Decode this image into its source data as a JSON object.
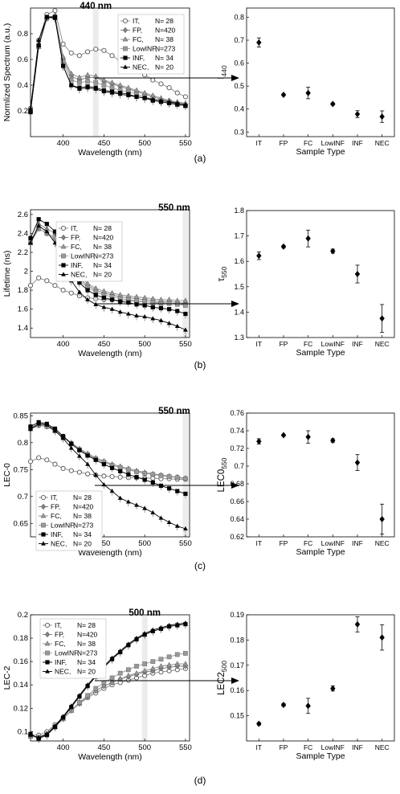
{
  "panels": [
    {
      "panel_label": "(a)",
      "left": {
        "type": "line",
        "highlight_label": "440 nm",
        "highlight_x": 440,
        "xlabel": "Wavelength (nm)",
        "ylabel": "Normlized Spectrum (a.u.)",
        "xlim": [
          360,
          555
        ],
        "ylim": [
          0.0,
          1.0
        ],
        "xticks": [
          400,
          450,
          500,
          550
        ],
        "yticks": [
          0.2,
          0.4,
          0.6,
          0.8
        ],
        "x": [
          360,
          370,
          380,
          390,
          400,
          410,
          420,
          430,
          440,
          450,
          460,
          470,
          480,
          490,
          500,
          510,
          520,
          530,
          540,
          550
        ],
        "series": [
          {
            "name": "IT,",
            "n": "N= 28",
            "values": [
              0.22,
              0.75,
              0.95,
              0.98,
              0.72,
              0.65,
              0.63,
              0.66,
              0.68,
              0.67,
              0.63,
              0.59,
              0.56,
              0.52,
              0.48,
              0.44,
              0.41,
              0.38,
              0.34,
              0.31
            ]
          },
          {
            "name": "FP,",
            "n": "N=420",
            "values": [
              0.2,
              0.7,
              0.92,
              0.94,
              0.6,
              0.47,
              0.44,
              0.46,
              0.46,
              0.43,
              0.41,
              0.39,
              0.37,
              0.35,
              0.33,
              0.31,
              0.29,
              0.28,
              0.26,
              0.25
            ]
          },
          {
            "name": "FC,",
            "n": "N= 38",
            "values": [
              0.2,
              0.7,
              0.93,
              0.94,
              0.62,
              0.49,
              0.46,
              0.48,
              0.47,
              0.44,
              0.42,
              0.4,
              0.38,
              0.36,
              0.34,
              0.32,
              0.3,
              0.28,
              0.27,
              0.26
            ]
          },
          {
            "name": "LowINF,",
            "n": "N=273",
            "values": [
              0.2,
              0.7,
              0.92,
              0.93,
              0.58,
              0.44,
              0.42,
              0.43,
              0.42,
              0.4,
              0.38,
              0.36,
              0.35,
              0.33,
              0.31,
              0.29,
              0.28,
              0.27,
              0.25,
              0.24
            ]
          },
          {
            "name": "INF,",
            "n": "N= 34",
            "values": [
              0.19,
              0.71,
              0.93,
              0.93,
              0.55,
              0.4,
              0.38,
              0.39,
              0.38,
              0.36,
              0.35,
              0.34,
              0.33,
              0.31,
              0.3,
              0.28,
              0.27,
              0.26,
              0.25,
              0.24
            ]
          },
          {
            "name": "NEC,",
            "n": "N= 20",
            "values": [
              0.22,
              0.75,
              0.93,
              0.92,
              0.55,
              0.4,
              0.37,
              0.38,
              0.37,
              0.35,
              0.34,
              0.33,
              0.32,
              0.31,
              0.3,
              0.29,
              0.28,
              0.27,
              0.26,
              0.25
            ]
          }
        ]
      },
      "right": {
        "type": "scatter",
        "ylabel_main": "I",
        "ylabel_sub": "440",
        "xlabel": "Sample Type",
        "categories": [
          "IT",
          "FP",
          "FC",
          "LowINF",
          "INF",
          "NEC"
        ],
        "values": [
          0.69,
          0.462,
          0.47,
          0.422,
          0.378,
          0.367
        ],
        "errors": [
          0.02,
          0.004,
          0.025,
          0.005,
          0.015,
          0.025
        ],
        "ylim": [
          0.28,
          0.84
        ],
        "yticks": [
          0.3,
          0.4,
          0.5,
          0.6,
          0.7,
          0.8
        ],
        "yticklabels": [
          "0.3",
          "0.4",
          "0.5",
          "0.6",
          "0.7",
          "0.8"
        ]
      }
    },
    {
      "panel_label": "(b)",
      "left": {
        "type": "line",
        "highlight_label": "550 nm",
        "highlight_x": 550,
        "xlabel": "Wavelength (nm)",
        "ylabel": "Lifetime (ns)",
        "xlim": [
          360,
          555
        ],
        "ylim": [
          1.3,
          2.65
        ],
        "xticks": [
          400,
          450,
          500,
          550
        ],
        "yticks": [
          1.4,
          1.6,
          1.8,
          2,
          2.2,
          2.4,
          2.6
        ],
        "x": [
          360,
          370,
          380,
          390,
          400,
          410,
          420,
          430,
          440,
          450,
          460,
          470,
          480,
          490,
          500,
          510,
          520,
          530,
          540,
          550
        ],
        "series": [
          {
            "name": "IT,",
            "n": "N= 28",
            "values": [
              1.85,
              1.93,
              1.9,
              1.85,
              1.8,
              1.77,
              1.74,
              1.72,
              1.71,
              1.7,
              1.7,
              1.69,
              1.69,
              1.68,
              1.68,
              1.67,
              1.67,
              1.66,
              1.66,
              1.65
            ]
          },
          {
            "name": "FP,",
            "n": "N=420",
            "values": [
              2.3,
              2.45,
              2.4,
              2.35,
              2.15,
              2.0,
              1.92,
              1.85,
              1.8,
              1.77,
              1.75,
              1.73,
              1.72,
              1.71,
              1.7,
              1.69,
              1.68,
              1.68,
              1.67,
              1.66
            ]
          },
          {
            "name": "FC,",
            "n": "N= 38",
            "values": [
              2.3,
              2.5,
              2.45,
              2.4,
              2.2,
              2.05,
              1.95,
              1.87,
              1.82,
              1.79,
              1.77,
              1.75,
              1.74,
              1.73,
              1.72,
              1.71,
              1.7,
              1.7,
              1.69,
              1.69
            ]
          },
          {
            "name": "LowINF,",
            "n": "N=273",
            "values": [
              2.3,
              2.45,
              2.4,
              2.35,
              2.15,
              2.0,
              1.9,
              1.83,
              1.78,
              1.75,
              1.73,
              1.71,
              1.7,
              1.69,
              1.68,
              1.67,
              1.66,
              1.66,
              1.65,
              1.64
            ]
          },
          {
            "name": "INF,",
            "n": "N= 34",
            "values": [
              2.35,
              2.55,
              2.5,
              2.42,
              2.15,
              1.98,
              1.88,
              1.8,
              1.75,
              1.72,
              1.7,
              1.68,
              1.67,
              1.65,
              1.64,
              1.62,
              1.61,
              1.6,
              1.58,
              1.55
            ]
          },
          {
            "name": "NEC,",
            "n": "N= 20",
            "values": [
              2.3,
              2.48,
              2.42,
              2.3,
              2.1,
              1.9,
              1.78,
              1.7,
              1.65,
              1.62,
              1.6,
              1.57,
              1.55,
              1.53,
              1.52,
              1.5,
              1.48,
              1.45,
              1.42,
              1.38
            ]
          }
        ]
      },
      "right": {
        "type": "scatter",
        "ylabel_main": "τ",
        "ylabel_sub": "550",
        "xlabel": "Sample Type",
        "categories": [
          "IT",
          "FP",
          "FC",
          "LowINF",
          "INF",
          "NEC"
        ],
        "values": [
          1.622,
          1.658,
          1.69,
          1.64,
          1.55,
          1.375
        ],
        "errors": [
          0.015,
          0.005,
          0.033,
          0.008,
          0.035,
          0.055
        ],
        "ylim": [
          1.3,
          1.8
        ],
        "yticks": [
          1.3,
          1.4,
          1.5,
          1.6,
          1.7,
          1.8
        ],
        "yticklabels": [
          "1.3",
          "1.4",
          "1.5",
          "1.6",
          "1.7",
          "1.8"
        ]
      }
    },
    {
      "panel_label": "(c)",
      "left": {
        "type": "line",
        "highlight_label": "550 nm",
        "highlight_x": 550,
        "xlabel": "Wavelength (nm)",
        "ylabel": "LEC-0",
        "xlim": [
          360,
          555
        ],
        "ylim": [
          0.625,
          0.855
        ],
        "xticks": [
          400,
          450,
          500,
          550
        ],
        "yticks": [
          0.65,
          0.7,
          0.75,
          0.8,
          0.85
        ],
        "x": [
          360,
          370,
          380,
          390,
          400,
          410,
          420,
          430,
          440,
          450,
          460,
          470,
          480,
          490,
          500,
          510,
          520,
          530,
          540,
          550
        ],
        "series": [
          {
            "name": "IT,",
            "n": "N= 28",
            "values": [
              0.765,
              0.772,
              0.768,
              0.76,
              0.752,
              0.748,
              0.745,
              0.742,
              0.74,
              0.738,
              0.737,
              0.736,
              0.735,
              0.735,
              0.734,
              0.734,
              0.733,
              0.733,
              0.732,
              0.732
            ]
          },
          {
            "name": "FP,",
            "n": "N=420",
            "values": [
              0.825,
              0.832,
              0.83,
              0.822,
              0.81,
              0.798,
              0.787,
              0.778,
              0.77,
              0.764,
              0.758,
              0.754,
              0.75,
              0.746,
              0.743,
              0.741,
              0.739,
              0.737,
              0.736,
              0.734
            ]
          },
          {
            "name": "FC,",
            "n": "N= 38",
            "values": [
              0.828,
              0.835,
              0.832,
              0.825,
              0.812,
              0.8,
              0.789,
              0.78,
              0.772,
              0.766,
              0.76,
              0.756,
              0.752,
              0.748,
              0.745,
              0.742,
              0.74,
              0.738,
              0.736,
              0.734
            ]
          },
          {
            "name": "LowINF,",
            "n": "N=273",
            "values": [
              0.826,
              0.833,
              0.83,
              0.822,
              0.81,
              0.798,
              0.787,
              0.778,
              0.77,
              0.764,
              0.758,
              0.754,
              0.75,
              0.746,
              0.743,
              0.741,
              0.739,
              0.737,
              0.735,
              0.733
            ]
          },
          {
            "name": "INF,",
            "n": "N= 34",
            "values": [
              0.83,
              0.838,
              0.835,
              0.826,
              0.812,
              0.798,
              0.786,
              0.776,
              0.768,
              0.76,
              0.753,
              0.747,
              0.741,
              0.736,
              0.731,
              0.726,
              0.72,
              0.715,
              0.71,
              0.705
            ]
          },
          {
            "name": "NEC,",
            "n": "N= 20",
            "values": [
              0.825,
              0.835,
              0.833,
              0.822,
              0.808,
              0.79,
              0.775,
              0.76,
              0.74,
              0.722,
              0.71,
              0.697,
              0.69,
              0.684,
              0.678,
              0.67,
              0.66,
              0.652,
              0.645,
              0.64
            ]
          }
        ]
      },
      "right": {
        "type": "scatter",
        "ylabel_main": "LEC0",
        "ylabel_sub": "550",
        "xlabel": "Sample Type",
        "categories": [
          "IT",
          "FP",
          "FC",
          "LowINF",
          "INF",
          "NEC"
        ],
        "values": [
          0.728,
          0.735,
          0.733,
          0.729,
          0.704,
          0.64
        ],
        "errors": [
          0.003,
          0.001,
          0.007,
          0.002,
          0.009,
          0.017
        ],
        "ylim": [
          0.62,
          0.76
        ],
        "yticks": [
          0.62,
          0.64,
          0.66,
          0.68,
          0.7,
          0.72,
          0.74,
          0.76
        ],
        "yticklabels": [
          "0.62",
          "0.64",
          "0.66",
          "0.68",
          "0.7",
          "0.72",
          "0.74",
          "0.76"
        ]
      }
    },
    {
      "panel_label": "(d)",
      "left": {
        "type": "line",
        "highlight_label": "500 nm",
        "highlight_x": 500,
        "xlabel": "Wavelength (nm)",
        "ylabel": "LEC-2",
        "xlim": [
          360,
          555
        ],
        "ylim": [
          0.092,
          0.2
        ],
        "xticks": [
          400,
          450,
          500,
          550
        ],
        "yticks": [
          0.1,
          0.12,
          0.14,
          0.16,
          0.18,
          0.2
        ],
        "x": [
          360,
          370,
          380,
          390,
          400,
          410,
          420,
          430,
          440,
          450,
          460,
          470,
          480,
          490,
          500,
          510,
          520,
          530,
          540,
          550
        ],
        "series": [
          {
            "name": "IT,",
            "n": "N= 28",
            "values": [
              0.097,
              0.097,
              0.1,
              0.106,
              0.112,
              0.118,
              0.124,
              0.129,
              0.133,
              0.137,
              0.14,
              0.142,
              0.144,
              0.146,
              0.148,
              0.15,
              0.151,
              0.152,
              0.153,
              0.154
            ]
          },
          {
            "name": "FP,",
            "n": "N=420",
            "values": [
              0.096,
              0.095,
              0.098,
              0.104,
              0.111,
              0.118,
              0.124,
              0.13,
              0.135,
              0.139,
              0.142,
              0.145,
              0.147,
              0.149,
              0.151,
              0.152,
              0.154,
              0.155,
              0.156,
              0.156
            ]
          },
          {
            "name": "FC,",
            "n": "N= 38",
            "values": [
              0.096,
              0.095,
              0.098,
              0.104,
              0.111,
              0.118,
              0.124,
              0.13,
              0.135,
              0.139,
              0.142,
              0.145,
              0.148,
              0.15,
              0.152,
              0.154,
              0.156,
              0.157,
              0.158,
              0.158
            ]
          },
          {
            "name": "LowINF,",
            "n": "N=273",
            "values": [
              0.096,
              0.095,
              0.098,
              0.104,
              0.111,
              0.118,
              0.125,
              0.131,
              0.137,
              0.142,
              0.146,
              0.15,
              0.153,
              0.156,
              0.158,
              0.16,
              0.162,
              0.164,
              0.166,
              0.167
            ]
          },
          {
            "name": "INF,",
            "n": "N= 34",
            "values": [
              0.098,
              0.094,
              0.097,
              0.104,
              0.112,
              0.121,
              0.13,
              0.139,
              0.147,
              0.155,
              0.162,
              0.168,
              0.174,
              0.179,
              0.183,
              0.186,
              0.188,
              0.19,
              0.191,
              0.192
            ]
          },
          {
            "name": "NEC,",
            "n": "N= 20",
            "values": [
              0.097,
              0.095,
              0.098,
              0.105,
              0.113,
              0.122,
              0.131,
              0.14,
              0.148,
              0.156,
              0.163,
              0.169,
              0.175,
              0.18,
              0.184,
              0.187,
              0.189,
              0.191,
              0.192,
              0.193
            ]
          }
        ]
      },
      "right": {
        "type": "scatter",
        "ylabel_main": "LEC2",
        "ylabel_sub": "500",
        "xlabel": "Sample Type",
        "categories": [
          "IT",
          "FP",
          "FC",
          "LowINF",
          "INF",
          "NEC"
        ],
        "values": [
          0.1468,
          0.1543,
          0.1539,
          0.1608,
          0.1862,
          0.181
        ],
        "errors": [
          0.0005,
          0.0005,
          0.003,
          0.001,
          0.003,
          0.005
        ],
        "ylim": [
          0.14,
          0.19
        ],
        "yticks": [
          0.15,
          0.16,
          0.17,
          0.18,
          0.19
        ],
        "yticklabels": [
          "0.15",
          "0.16",
          "0.17",
          "0.18",
          "0.19"
        ]
      }
    }
  ]
}
